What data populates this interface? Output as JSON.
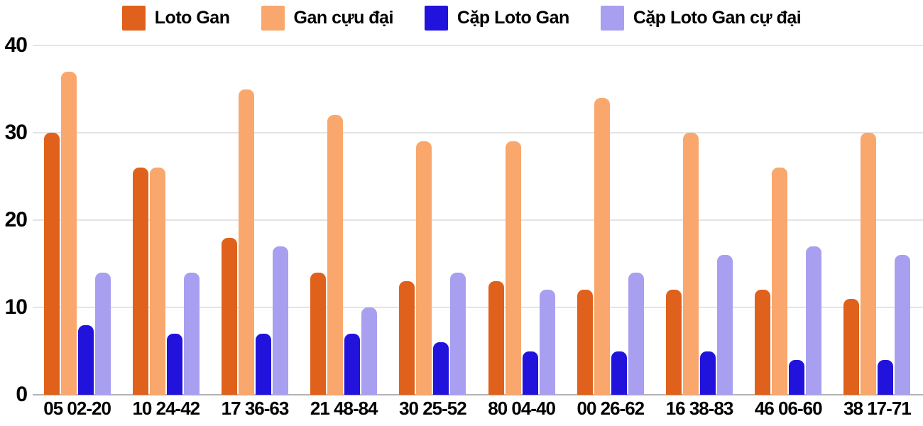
{
  "chart_data": {
    "type": "bar",
    "title": "",
    "categories": [
      "05 02-20",
      "10 24-42",
      "17 36-63",
      "21 48-84",
      "30 25-52",
      "80 04-40",
      "00 26-62",
      "16 38-83",
      "46 06-60",
      "38 17-71"
    ],
    "series": [
      {
        "name": "Loto Gan",
        "color": "#e0611b",
        "values": [
          30,
          26,
          18,
          14,
          13,
          13,
          12,
          12,
          12,
          11
        ]
      },
      {
        "name": "Gan cựu đại",
        "color": "#f9a76c",
        "values": [
          37,
          26,
          35,
          32,
          29,
          29,
          34,
          30,
          26,
          30
        ]
      },
      {
        "name": "Cặp Loto Gan",
        "color": "#2213dc",
        "values": [
          8,
          7,
          7,
          7,
          6,
          5,
          5,
          5,
          4,
          4
        ]
      },
      {
        "name": "Cặp Loto Gan cự đại",
        "color": "#a89ff1",
        "values": [
          14,
          14,
          17,
          10,
          14,
          12,
          14,
          16,
          17,
          16
        ]
      }
    ],
    "ylabel": "",
    "xlabel": "",
    "ylim": [
      0,
      40
    ],
    "yticks": [
      0,
      10,
      20,
      30,
      40
    ],
    "grid": true,
    "legend_position": "top",
    "colors": {
      "gridline": "#e4e4e4",
      "axis_line": "#b3b3b3",
      "text": "#000000",
      "background": "#ffffff"
    }
  }
}
